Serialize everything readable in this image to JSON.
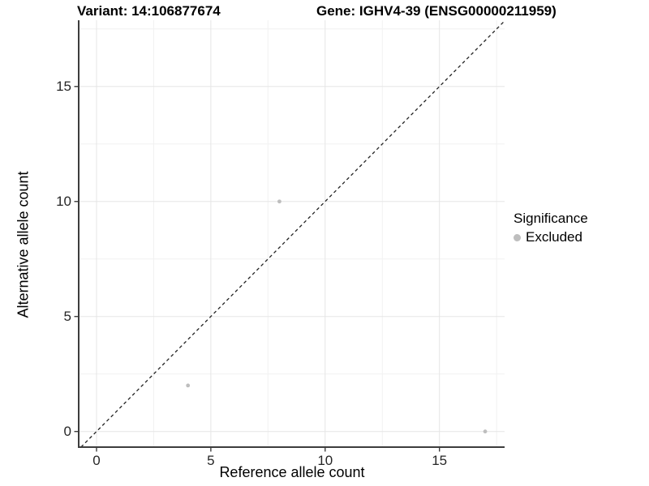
{
  "figure": {
    "title_left": "Variant: 14:106877674",
    "title_right": "Gene: IGHV4-39 (ENSG00000211959)"
  },
  "chart_data": {
    "type": "scatter",
    "title": "Variant: 14:106877674 — Gene: IGHV4-39 (ENSG00000211959)",
    "xlabel": "Reference allele count",
    "ylabel": "Alternative allele count",
    "xlim": [
      -0.78,
      17.85
    ],
    "ylim": [
      -0.68,
      17.88
    ],
    "x_ticks": [
      0,
      5,
      10,
      15
    ],
    "y_ticks": [
      0,
      5,
      10,
      15
    ],
    "x_minor_ticks": [
      2.5,
      7.5,
      12.5,
      17.5
    ],
    "y_minor_ticks": [
      2.5,
      7.5,
      12.5,
      17.5
    ],
    "grid": "major and minor, light grey on white",
    "series": [
      {
        "name": "Excluded",
        "color": "#bebebe",
        "points": [
          {
            "x": 4,
            "y": 2
          },
          {
            "x": 8,
            "y": 10
          },
          {
            "x": 17,
            "y": 0
          }
        ]
      }
    ],
    "reference_line": {
      "type": "identity y=x",
      "style": "dashed",
      "color": "#222222"
    },
    "legend": {
      "title": "Significance",
      "position": "right",
      "items": [
        {
          "label": "Excluded",
          "color": "#bebebe"
        }
      ]
    }
  },
  "style_colors": {
    "axis_line": "#3d3d3d",
    "major_grid": "#e5e5e5",
    "minor_grid": "#f1f1f1",
    "tick_mark": "#3d3d3d"
  }
}
